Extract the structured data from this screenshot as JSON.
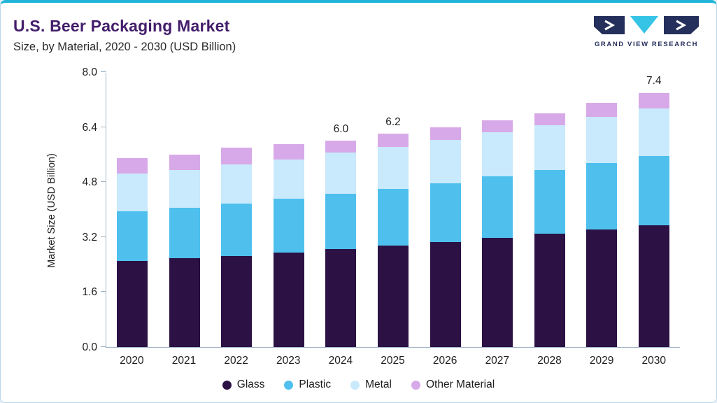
{
  "header": {
    "title": "U.S. Beer Packaging Market",
    "subtitle": "Size, by Material, 2020 - 2030 (USD Billion)"
  },
  "logo": {
    "text": "GRAND VIEW RESEARCH",
    "navy": "#252f5c",
    "cyan": "#35c4e6"
  },
  "colors": {
    "accent_top_line": "#1fb4d8",
    "card_border": "#b9d6e8",
    "title_text": "#431d6a",
    "axis_line": "#9db3c6"
  },
  "chart_data": {
    "type": "bar",
    "variant": "stacked",
    "title": "U.S. Beer Packaging Market Size, by Material, 2020 - 2030 (USD Billion)",
    "categories": [
      "2020",
      "2021",
      "2022",
      "2023",
      "2024",
      "2025",
      "2026",
      "2027",
      "2028",
      "2029",
      "2030"
    ],
    "series": [
      {
        "name": "Glass",
        "color": "#2b1144",
        "values": [
          2.5,
          2.58,
          2.65,
          2.75,
          2.85,
          2.95,
          3.05,
          3.18,
          3.3,
          3.42,
          3.55
        ]
      },
      {
        "name": "Plastic",
        "color": "#4fc0ee",
        "values": [
          1.45,
          1.48,
          1.52,
          1.56,
          1.6,
          1.66,
          1.72,
          1.78,
          1.85,
          1.93,
          2.0
        ]
      },
      {
        "name": "Metal",
        "color": "#c9e9fc",
        "values": [
          1.1,
          1.1,
          1.15,
          1.15,
          1.2,
          1.22,
          1.25,
          1.28,
          1.3,
          1.35,
          1.4
        ]
      },
      {
        "name": "Other Material",
        "color": "#d8a9e8",
        "values": [
          0.45,
          0.44,
          0.48,
          0.44,
          0.35,
          0.37,
          0.38,
          0.36,
          0.35,
          0.4,
          0.45
        ]
      }
    ],
    "totals": [
      5.5,
      5.6,
      5.8,
      5.9,
      6.0,
      6.2,
      6.4,
      6.6,
      6.8,
      7.1,
      7.4
    ],
    "totals_labeled": {
      "2024": "6.0",
      "2025": "6.2",
      "2030": "7.4"
    },
    "xlabel": "",
    "ylabel": "Market Size (USD Billion)",
    "yticks": [
      0.0,
      1.6,
      3.2,
      4.8,
      6.4,
      8.0
    ],
    "ylim": [
      0,
      8.0
    ],
    "grid": false,
    "legend_position": "bottom"
  }
}
